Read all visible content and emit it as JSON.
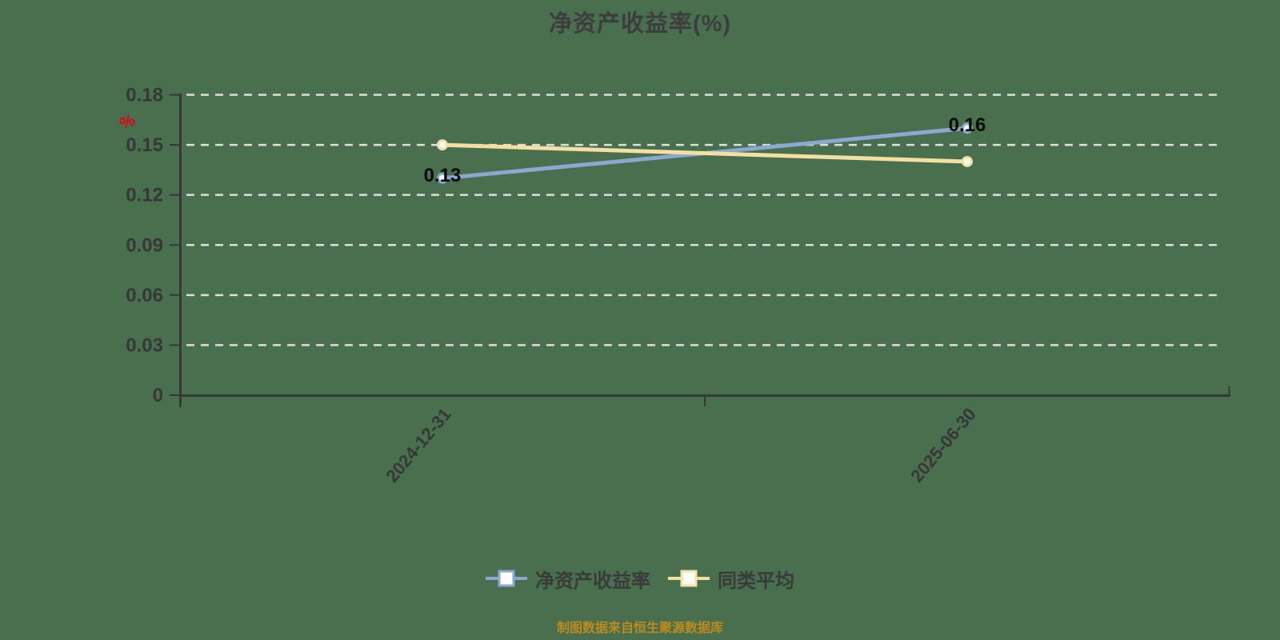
{
  "caption": "制图数据来自恒生聚源数据库",
  "colors": {
    "background_green": "#48704E",
    "series_blue": "#8CA7D1",
    "series_yellow": "#F6DFA3",
    "unit_red": "#E60012",
    "caption_orange": "#BE8A1E",
    "axis_dark": "#373737",
    "grid_light": "#DEDEDE"
  },
  "chart_data": {
    "type": "line",
    "title": "净资产收益率(%)",
    "y_axis_unit": "%",
    "categories": [
      "2024-12-31",
      "2025-06-30"
    ],
    "series": [
      {
        "name": "净资产收益率",
        "values": [
          0.13,
          0.16
        ],
        "labels": [
          "0.13",
          "0.16"
        ],
        "color": "#8CA7D1",
        "marker": "hollow-circle"
      },
      {
        "name": "同类平均",
        "values": [
          0.15,
          0.14
        ],
        "labels": null,
        "color": "#F6DFA3",
        "marker": "hollow-circle"
      }
    ],
    "ylim": [
      0,
      0.18
    ],
    "yticks": [
      0,
      0.03,
      0.06,
      0.09,
      0.12,
      0.15,
      0.18
    ],
    "ytick_labels": [
      "0",
      "0.03",
      "0.06",
      "0.09",
      "0.12",
      "0.15",
      "0.18"
    ],
    "grid": "horizontal-dashed",
    "legend_position": "bottom",
    "x_label_rotation_deg": -50
  },
  "legend": {
    "items": [
      {
        "label": "净资产收益率"
      },
      {
        "label": "同类平均"
      }
    ]
  }
}
